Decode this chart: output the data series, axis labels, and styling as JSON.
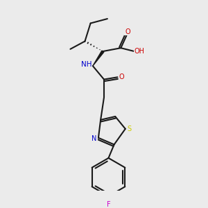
{
  "background_color": "#ebebeb",
  "bond_color": "#1a1a1a",
  "atom_colors": {
    "N": "#0000cc",
    "O": "#cc0000",
    "S": "#cccc00",
    "F": "#cc00cc",
    "C": "#1a1a1a"
  },
  "figsize": [
    3.0,
    3.0
  ],
  "dpi": 100
}
